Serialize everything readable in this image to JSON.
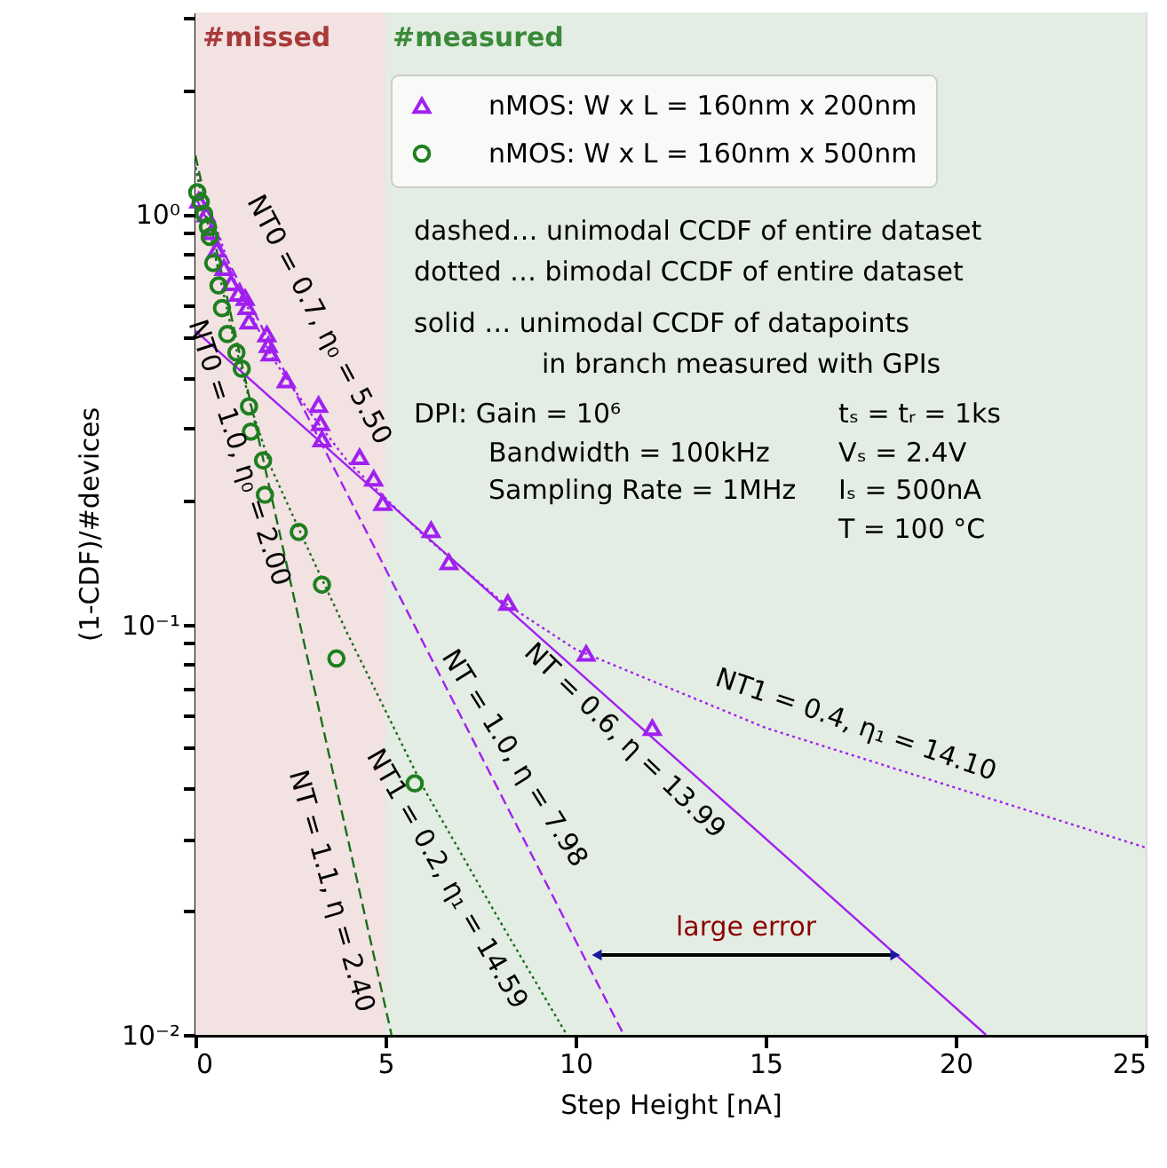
{
  "chart_data": {
    "type": "scatter",
    "xlabel": "Step Height  [nA]",
    "ylabel": "(1-CDF)/#devices",
    "xlim": [
      0,
      25
    ],
    "xticks": [
      0,
      5,
      10,
      15,
      20,
      25
    ],
    "ylim": [
      0.01,
      3.1
    ],
    "log": true,
    "legend": "top right",
    "yticks": [
      {
        "value": 0.01,
        "label": "10⁻²"
      },
      {
        "value": 0.02,
        "label": null
      },
      {
        "value": 0.03,
        "label": null
      },
      {
        "value": 0.04,
        "label": null
      },
      {
        "value": 0.05,
        "label": null
      },
      {
        "value": 0.06,
        "label": null
      },
      {
        "value": 0.07,
        "label": null
      },
      {
        "value": 0.08,
        "label": null
      },
      {
        "value": 0.09,
        "label": null
      },
      {
        "value": 0.1,
        "label": "10⁻¹"
      },
      {
        "value": 0.2,
        "label": null
      },
      {
        "value": 0.3,
        "label": null
      },
      {
        "value": 0.4,
        "label": null
      },
      {
        "value": 0.5,
        "label": null
      },
      {
        "value": 0.6,
        "label": null
      },
      {
        "value": 0.7,
        "label": null
      },
      {
        "value": 0.8,
        "label": null
      },
      {
        "value": 0.9,
        "label": null
      },
      {
        "value": 1,
        "label": "10⁰"
      },
      {
        "value": 2,
        "label": null
      },
      {
        "value": 3,
        "label": null
      }
    ],
    "bands": [
      {
        "axis": "x",
        "from": 0,
        "to": 5,
        "label": "#missed",
        "color": "#f2e2e2"
      },
      {
        "axis": "x",
        "from": 5,
        "to": 25,
        "label": "#measured",
        "color": "#e4ede3"
      }
    ],
    "series": [
      {
        "name": "nMOS: W x L = 160nm x 200nm",
        "color": "#a020f0",
        "marker": "triangle",
        "x": [
          0.09,
          0.28,
          0.42,
          0.56,
          0.75,
          0.94,
          1.13,
          1.31,
          1.36,
          1.41,
          1.88,
          1.92,
          1.97,
          2.39,
          3.24,
          3.29,
          3.33,
          4.32,
          4.69,
          4.93,
          6.2,
          6.67,
          8.22,
          10.28,
          12.02
        ],
        "values": [
          1.08,
          1.0,
          0.905,
          0.82,
          0.74,
          0.68,
          0.64,
          0.625,
          0.594,
          0.548,
          0.51,
          0.48,
          0.458,
          0.394,
          0.343,
          0.31,
          0.283,
          0.256,
          0.227,
          0.198,
          0.17,
          0.142,
          0.113,
          0.085,
          0.056
        ]
      },
      {
        "name": "nMOS: W x L = 160nm x 500nm",
        "color": "#1f7f1f",
        "marker": "circle",
        "x": [
          0.05,
          0.14,
          0.23,
          0.33,
          0.38,
          0.47,
          0.61,
          0.7,
          0.84,
          1.08,
          1.22,
          1.41,
          1.46,
          1.78,
          1.83,
          2.72,
          3.33,
          3.71,
          5.77
        ],
        "values": [
          1.13,
          1.07,
          1.0,
          0.93,
          0.88,
          0.76,
          0.67,
          0.59,
          0.51,
          0.46,
          0.42,
          0.34,
          0.295,
          0.251,
          0.207,
          0.168,
          0.125,
          0.0826,
          0.041
        ]
      },
      {
        "type": "line",
        "color": "#a020f0",
        "line_style": "dashed",
        "x": [
          0,
          11.27
        ],
        "values": [
          1.1,
          0.01
        ]
      },
      {
        "type": "line",
        "color": "#a020f0",
        "line_style": "solid",
        "x": [
          0,
          20.8
        ],
        "values": [
          0.52,
          0.01
        ]
      },
      {
        "type": "line",
        "color": "#a020f0",
        "line_style": "dotted",
        "x": [
          0,
          1,
          2,
          3,
          4,
          6,
          8,
          10,
          15,
          20,
          25
        ],
        "values": [
          1.3,
          0.7,
          0.45,
          0.33,
          0.25,
          0.165,
          0.115,
          0.087,
          0.056,
          0.04,
          0.0286
        ]
      },
      {
        "type": "line",
        "color": "#1a6e1a",
        "line_style": "dashed",
        "x": [
          0,
          5.16
        ],
        "values": [
          1.39,
          0.01
        ]
      },
      {
        "type": "line",
        "color": "#1a6e1a",
        "line_style": "dotted",
        "x": [
          0,
          1,
          1.5,
          2,
          3,
          4,
          6,
          8,
          9.77
        ],
        "values": [
          1.3,
          0.5,
          0.33,
          0.24,
          0.15,
          0.095,
          0.04,
          0.019,
          0.01
        ]
      }
    ],
    "annotations": [
      "NT0 = 0.7, η₀ = 5.50",
      "NT0 = 1.0, η₀ = 2.00",
      "NT = 1.1, η = 2.40",
      "NT1 = 0.2, η₁ = 14.59",
      "NT = 1.0, η = 7.98",
      "NT = 0.6, η = 13.99",
      "NT1 = 0.4, η₁ = 14.10",
      "large error",
      "dashed… unimodal CCDF of entire dataset",
      "dotted … bimodal CCDF of entire dataset",
      "solid     … unimodal CCDF of datapoints",
      "in branch measured with GPIs",
      "DPI: Gain = 10⁶",
      "Bandwidth = 100kHz",
      "Sampling Rate = 1MHz",
      "tₛ = tᵣ = 1ks",
      "Vₛ = 2.4V",
      "Iₛ = 500nA",
      "T = 100 °C"
    ]
  }
}
